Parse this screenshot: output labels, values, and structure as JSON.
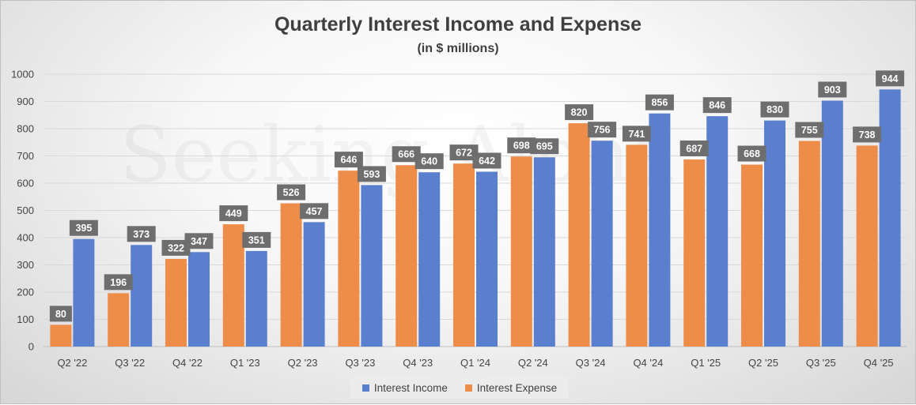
{
  "colors": {
    "income": "#5b7fcf",
    "expense": "#ee8d4a",
    "label_box": "#6e6e6e",
    "gridline": "#d9d9d9"
  },
  "watermark_text": "Seeking Alpha",
  "chart_data": {
    "type": "bar",
    "title": "Quarterly Interest Income and Expense",
    "subtitle": "(in $ millions)",
    "xlabel": "",
    "ylabel": "",
    "ylim": [
      0,
      1000
    ],
    "yticks": [
      0,
      100,
      200,
      300,
      400,
      500,
      600,
      700,
      800,
      900,
      1000
    ],
    "grid": true,
    "legend_position": "bottom",
    "categories": [
      "Q2 '22",
      "Q3 '22",
      "Q4 '22",
      "Q1 '23",
      "Q2 '23",
      "Q3 '23",
      "Q4 '23",
      "Q1 '24",
      "Q2 '24",
      "Q3 '24",
      "Q4 '24",
      "Q1 '25",
      "Q2 '25",
      "Q3 '25",
      "Q4 '25"
    ],
    "series": [
      {
        "name": "Interest Expense",
        "values": [
          80,
          196,
          322,
          449,
          526,
          646,
          666,
          672,
          698,
          820,
          741,
          687,
          668,
          755,
          738
        ]
      },
      {
        "name": "Interest Income",
        "values": [
          395,
          373,
          347,
          351,
          457,
          593,
          640,
          642,
          695,
          756,
          856,
          846,
          830,
          903,
          944
        ]
      }
    ]
  },
  "legend": {
    "income_label": "Interest Income",
    "expense_label": "Interest Expense"
  }
}
